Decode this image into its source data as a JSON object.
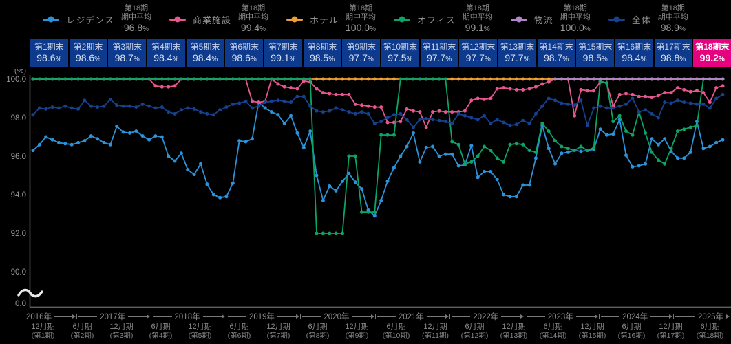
{
  "units": {
    "percent": "%"
  },
  "legend": {
    "stat_line1": "第18期",
    "stat_line2": "期中平均",
    "items": [
      {
        "name": "レジデンス",
        "color": "#2c93da",
        "avg_value": "96.8"
      },
      {
        "name": "商業施設",
        "color": "#e8568f",
        "avg_value": "99.4"
      },
      {
        "name": "ホテル",
        "color": "#f0a032",
        "avg_value": "100.0"
      },
      {
        "name": "オフィス",
        "color": "#0ca467",
        "avg_value": "99.1"
      },
      {
        "name": "物流",
        "color": "#b286ca",
        "avg_value": "100.0"
      },
      {
        "name": "全体",
        "color": "#16418f",
        "avg_value": "98.9"
      }
    ]
  },
  "period_boxes": {
    "normal_bg": "#0d3a8c",
    "highlight_bg": "#e6017f",
    "items": [
      {
        "label": "第1期末",
        "value": "98.6",
        "highlight": false
      },
      {
        "label": "第2期末",
        "value": "98.6",
        "highlight": false
      },
      {
        "label": "第3期末",
        "value": "98.7",
        "highlight": false
      },
      {
        "label": "第4期末",
        "value": "98.4",
        "highlight": false
      },
      {
        "label": "第5期末",
        "value": "98.4",
        "highlight": false
      },
      {
        "label": "第6期末",
        "value": "98.6",
        "highlight": false
      },
      {
        "label": "第7期末",
        "value": "99.1",
        "highlight": false
      },
      {
        "label": "第8期末",
        "value": "98.5",
        "highlight": false
      },
      {
        "label": "第9期末",
        "value": "97.7",
        "highlight": false
      },
      {
        "label": "第10期末",
        "value": "97.5",
        "highlight": false
      },
      {
        "label": "第11期末",
        "value": "97.7",
        "highlight": false
      },
      {
        "label": "第12期末",
        "value": "97.7",
        "highlight": false
      },
      {
        "label": "第13期末",
        "value": "97.7",
        "highlight": false
      },
      {
        "label": "第14期末",
        "value": "98.7",
        "highlight": false
      },
      {
        "label": "第15期末",
        "value": "98.5",
        "highlight": false
      },
      {
        "label": "第16期末",
        "value": "98.4",
        "highlight": false
      },
      {
        "label": "第17期末",
        "value": "98.8",
        "highlight": false
      },
      {
        "label": "第18期末",
        "value": "99.2",
        "highlight": true
      }
    ]
  },
  "y_axis": {
    "unit": "(%)",
    "ticks": [
      "100.0",
      "98.0",
      "96.0",
      "94.0",
      "92.0",
      "90.0",
      "0.0"
    ],
    "has_break": true
  },
  "x_axis": {
    "years": [
      {
        "label": "2016年",
        "span": 0.95
      },
      {
        "label": "2017年",
        "span": 2
      },
      {
        "label": "2018年",
        "span": 2
      },
      {
        "label": "2019年",
        "span": 2
      },
      {
        "label": "2020年",
        "span": 2
      },
      {
        "label": "2021年",
        "span": 2
      },
      {
        "label": "2022年",
        "span": 2
      },
      {
        "label": "2023年",
        "span": 2
      },
      {
        "label": "2024年",
        "span": 2
      },
      {
        "label": "2025年",
        "span": 1.05
      }
    ],
    "periods": [
      {
        "month": "12月期",
        "period": "(第1期)"
      },
      {
        "month": "6月期",
        "period": "(第2期)"
      },
      {
        "month": "12月期",
        "period": "(第3期)"
      },
      {
        "month": "6月期",
        "period": "(第4期)"
      },
      {
        "month": "12月期",
        "period": "(第5期)"
      },
      {
        "month": "6月期",
        "period": "(第6期)"
      },
      {
        "month": "12月期",
        "period": "(第7期)"
      },
      {
        "month": "6月期",
        "period": "(第8期)"
      },
      {
        "month": "12月期",
        "period": "(第9期)"
      },
      {
        "month": "6月期",
        "period": "(第10期)"
      },
      {
        "month": "12月期",
        "period": "(第11期)"
      },
      {
        "month": "6月期",
        "period": "(第12期)"
      },
      {
        "month": "12月期",
        "period": "(第13期)"
      },
      {
        "month": "6月期",
        "period": "(第14期)"
      },
      {
        "month": "12月期",
        "period": "(第15期)"
      },
      {
        "month": "6月期",
        "period": "(第16期)"
      },
      {
        "month": "12月期",
        "period": "(第17期)"
      },
      {
        "month": "6月期",
        "period": "(第18期)"
      }
    ]
  },
  "chart_data": {
    "type": "line",
    "x_start": "2016-07",
    "x_end": "2025-06",
    "granularity": "monthly",
    "ylabel": "(%)",
    "ylim": [
      90,
      100
    ],
    "y_break_to_zero": true,
    "grid": false,
    "legend_position": "top",
    "series": [
      {
        "name": "レジデンス",
        "color": "#2c93da",
        "values": [
          96.3,
          96.6,
          97.0,
          96.85,
          96.7,
          96.65,
          96.6,
          96.7,
          96.8,
          97.05,
          96.9,
          96.7,
          96.6,
          97.55,
          97.25,
          97.2,
          97.3,
          97.05,
          96.85,
          97.05,
          97.0,
          96.0,
          95.75,
          96.15,
          95.3,
          95.05,
          95.6,
          94.55,
          94.0,
          93.85,
          93.9,
          94.6,
          96.8,
          96.75,
          96.9,
          98.8,
          98.5,
          98.3,
          98.15,
          97.7,
          98.1,
          97.2,
          96.45,
          97.3,
          95.0,
          93.7,
          94.45,
          94.2,
          94.7,
          95.1,
          94.65,
          94.3,
          93.2,
          92.9,
          93.7,
          94.7,
          95.4,
          96.0,
          96.5,
          97.2,
          95.7,
          96.45,
          96.5,
          96.0,
          96.1,
          96.1,
          95.5,
          95.55,
          96.55,
          94.9,
          95.2,
          95.2,
          94.8,
          94.0,
          93.9,
          93.9,
          94.5,
          94.5,
          95.9,
          97.6,
          96.4,
          95.6,
          96.15,
          96.2,
          96.3,
          96.25,
          96.3,
          96.35,
          97.4,
          97.1,
          97.15,
          97.9,
          96.05,
          95.45,
          95.5,
          95.6,
          96.9,
          96.6,
          96.9,
          96.25,
          95.9,
          95.9,
          96.2,
          97.8,
          96.4,
          96.5,
          96.7,
          96.85
        ]
      },
      {
        "name": "商業施設",
        "color": "#e8568f",
        "values": [
          100,
          100,
          100,
          100,
          100,
          100,
          100,
          100,
          100,
          100,
          100,
          100,
          100,
          100,
          100,
          100,
          100,
          100,
          100,
          99.65,
          99.6,
          99.6,
          99.65,
          100,
          100,
          100,
          100,
          100,
          100,
          100,
          100,
          100,
          100,
          100,
          98.85,
          98.8,
          98.85,
          100,
          99.75,
          99.6,
          99.55,
          99.5,
          99.9,
          99.85,
          99.5,
          99.3,
          99.25,
          99.2,
          99.2,
          99.2,
          98.7,
          98.65,
          98.6,
          98.55,
          98.55,
          97.75,
          97.75,
          97.8,
          98.45,
          98.35,
          98.3,
          97.5,
          98.3,
          98.35,
          98.3,
          98.3,
          98.3,
          98.35,
          98.9,
          99.0,
          98.95,
          99.0,
          99.5,
          99.55,
          99.5,
          99.45,
          99.45,
          99.5,
          99.6,
          99.75,
          99.85,
          100,
          100,
          100,
          98.1,
          99.45,
          99.4,
          99.4,
          99.85,
          99.8,
          98.6,
          99.2,
          99.25,
          99.2,
          99.1,
          99.1,
          99.05,
          99.15,
          99.3,
          99.3,
          99.55,
          99.45,
          99.35,
          99.4,
          99.3,
          98.8,
          99.55,
          99.65
        ]
      },
      {
        "name": "ホテル",
        "color": "#f0a032",
        "values": [
          100,
          100,
          100,
          100,
          100,
          100,
          100,
          100,
          100,
          100,
          100,
          100,
          100,
          100,
          100,
          100,
          100,
          100,
          100,
          100,
          100,
          100,
          100,
          100,
          100,
          100,
          100,
          100,
          100,
          100,
          100,
          100,
          100,
          100,
          100,
          100,
          100,
          100,
          100,
          100,
          100,
          100,
          100,
          100,
          100,
          100,
          100,
          100,
          100,
          100,
          100,
          100,
          100,
          100,
          100,
          100,
          100,
          100,
          100,
          100,
          100,
          100,
          100,
          100,
          100,
          100,
          100,
          100,
          100,
          100,
          100,
          100,
          100,
          100,
          100,
          100,
          100,
          100,
          100,
          100,
          100,
          100,
          100,
          100,
          100,
          100,
          100,
          100,
          100,
          100,
          100,
          100,
          100,
          100,
          100,
          100,
          100,
          100,
          100,
          100,
          100,
          100,
          100,
          100,
          100,
          100,
          100,
          100
        ]
      },
      {
        "name": "オフィス",
        "color": "#0ca467",
        "values": [
          100,
          100,
          100,
          100,
          100,
          100,
          100,
          100,
          100,
          100,
          100,
          100,
          100,
          100,
          100,
          100,
          100,
          100,
          100,
          100,
          100,
          100,
          100,
          100,
          100,
          100,
          100,
          100,
          100,
          100,
          100,
          100,
          100,
          100,
          100,
          100,
          100,
          100,
          100,
          100,
          100,
          100,
          100,
          100,
          92.0,
          92.0,
          92.0,
          92.0,
          92.0,
          96.0,
          96.0,
          93.1,
          93.1,
          93.1,
          97.1,
          97.1,
          97.1,
          100,
          100,
          100,
          100,
          100,
          100,
          100,
          100,
          96.75,
          96.6,
          95.6,
          95.7,
          96.0,
          96.5,
          96.3,
          95.9,
          95.7,
          96.6,
          96.65,
          96.6,
          96.3,
          96.2,
          97.7,
          97.3,
          96.8,
          96.5,
          96.4,
          96.3,
          96.5,
          96.3,
          96.45,
          99.9,
          99.8,
          97.8,
          98.1,
          97.3,
          97.1,
          98.3,
          97.2,
          96.2,
          95.8,
          95.6,
          96.4,
          97.3,
          97.4,
          97.5,
          97.6,
          100,
          100,
          100,
          100
        ]
      },
      {
        "name": "物流",
        "color": "#b286ca",
        "values": [
          null,
          null,
          null,
          null,
          null,
          null,
          null,
          null,
          null,
          null,
          null,
          null,
          null,
          null,
          null,
          null,
          null,
          null,
          null,
          null,
          null,
          null,
          null,
          null,
          null,
          null,
          null,
          null,
          null,
          null,
          null,
          null,
          null,
          null,
          null,
          null,
          null,
          null,
          null,
          null,
          null,
          null,
          null,
          null,
          null,
          null,
          null,
          null,
          null,
          null,
          null,
          null,
          null,
          null,
          null,
          null,
          null,
          null,
          null,
          null,
          null,
          null,
          null,
          null,
          null,
          null,
          null,
          null,
          null,
          null,
          null,
          null,
          null,
          null,
          null,
          null,
          null,
          null,
          null,
          null,
          null,
          100,
          100,
          100,
          100,
          100,
          100,
          100,
          100,
          100,
          100,
          100,
          100,
          100,
          100,
          100,
          100,
          100,
          100,
          100,
          100,
          100,
          100,
          100,
          100,
          100,
          100,
          100
        ]
      },
      {
        "name": "全体",
        "color": "#16418f",
        "values": [
          98.15,
          98.5,
          98.45,
          98.55,
          98.5,
          98.6,
          98.5,
          98.45,
          98.9,
          98.6,
          98.55,
          98.6,
          98.95,
          98.65,
          98.6,
          98.6,
          98.55,
          98.7,
          98.6,
          98.5,
          98.55,
          98.3,
          98.2,
          98.4,
          98.5,
          98.45,
          98.3,
          98.2,
          98.15,
          98.4,
          98.55,
          98.7,
          98.75,
          98.85,
          98.5,
          98.6,
          98.8,
          98.85,
          98.9,
          98.85,
          98.8,
          99.1,
          99.1,
          98.6,
          98.35,
          98.3,
          98.35,
          98.5,
          98.4,
          98.3,
          98.2,
          98.3,
          98.2,
          97.7,
          97.8,
          98.0,
          98.15,
          98.2,
          97.9,
          97.5,
          97.9,
          97.95,
          97.9,
          97.85,
          97.8,
          97.7,
          98.2,
          98.1,
          98.0,
          97.9,
          98.1,
          97.7,
          97.9,
          97.75,
          97.6,
          97.65,
          97.85,
          97.7,
          98.2,
          98.6,
          99.0,
          98.9,
          98.75,
          98.7,
          98.65,
          98.9,
          97.6,
          98.5,
          98.6,
          98.5,
          98.5,
          98.6,
          98.7,
          99.0,
          98.3,
          98.4,
          98.2,
          98.0,
          98.8,
          98.75,
          98.9,
          98.8,
          98.75,
          98.7,
          98.7,
          98.5,
          99.0,
          99.2
        ]
      }
    ]
  }
}
